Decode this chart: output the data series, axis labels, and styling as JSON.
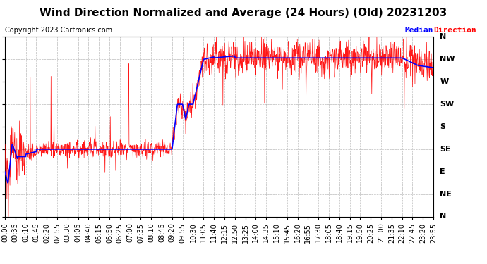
{
  "title": "Wind Direction Normalized and Average (24 Hours) (Old) 20231203",
  "copyright": "Copyright 2023 Cartronics.com",
  "legend_median": "Median",
  "legend_direction": "Direction",
  "ytick_labels": [
    "N",
    "NW",
    "W",
    "SW",
    "S",
    "SE",
    "E",
    "NE",
    "N"
  ],
  "ytick_values": [
    360,
    315,
    270,
    225,
    180,
    135,
    90,
    45,
    0
  ],
  "xtick_labels": [
    "00:00",
    "00:35",
    "01:10",
    "01:45",
    "02:20",
    "02:55",
    "03:30",
    "04:05",
    "04:40",
    "05:15",
    "05:50",
    "06:25",
    "07:00",
    "07:35",
    "08:10",
    "08:45",
    "09:20",
    "09:55",
    "10:30",
    "11:05",
    "11:40",
    "12:15",
    "12:50",
    "13:25",
    "14:00",
    "14:35",
    "15:10",
    "15:45",
    "16:20",
    "16:55",
    "17:30",
    "18:05",
    "18:40",
    "19:15",
    "19:50",
    "20:25",
    "21:00",
    "21:35",
    "22:10",
    "22:45",
    "23:20",
    "23:55"
  ],
  "background_color": "#ffffff",
  "plot_bg_color": "#ffffff",
  "grid_color": "#aaaaaa",
  "line_color_raw": "#ff0000",
  "line_color_median": "#0000ff",
  "title_color": "#000000",
  "copyright_color": "#000000",
  "legend_color_median": "#0000ff",
  "legend_color_direction": "#ff0000",
  "ylim": [
    0,
    360
  ],
  "title_fontsize": 11,
  "copyright_fontsize": 7,
  "tick_fontsize": 7
}
